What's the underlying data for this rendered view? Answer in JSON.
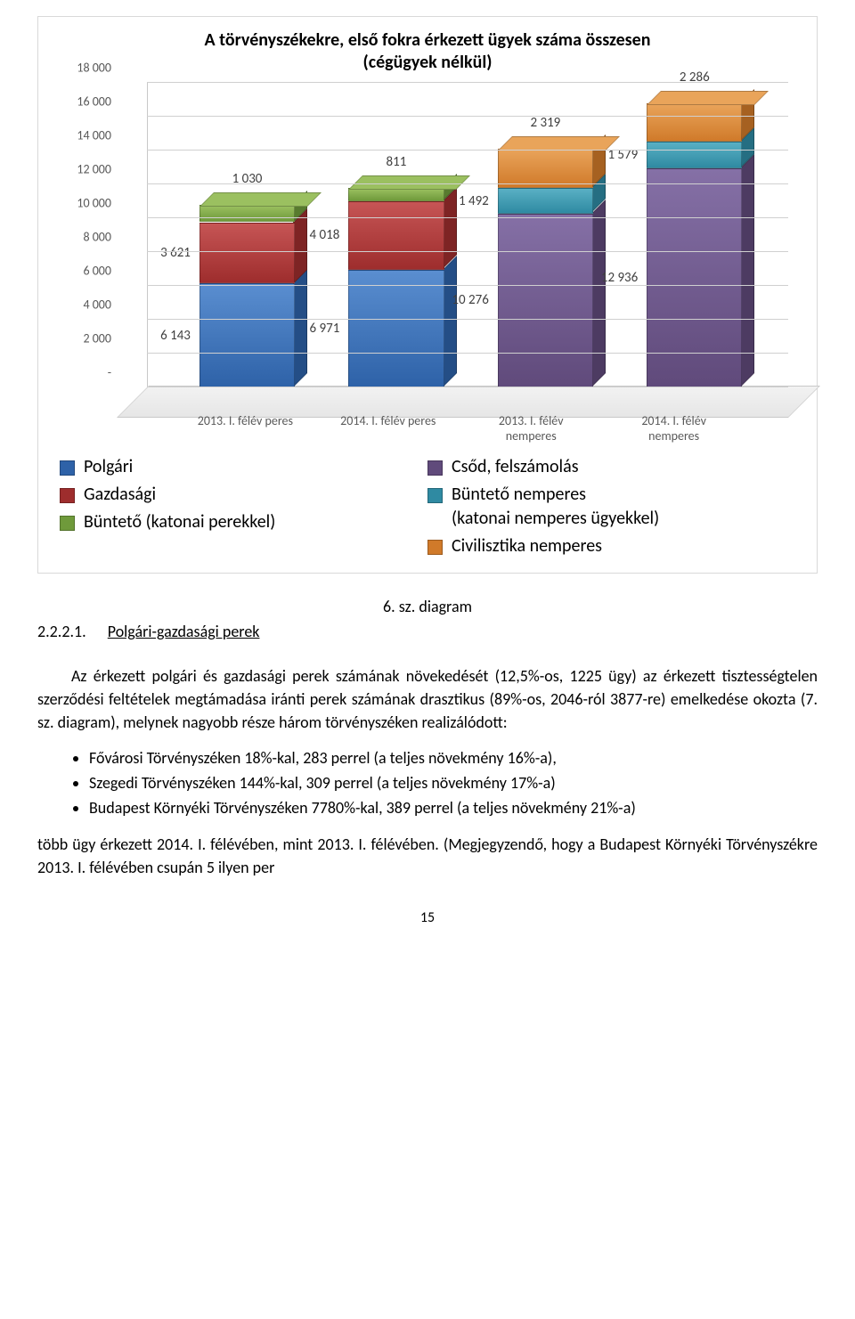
{
  "chart": {
    "type": "stacked-bar-3d",
    "title_line1": "A törvényszékekre, első fokra érkezett ügyek száma összesen",
    "title_line2": "(cégügyek nélkül)",
    "title_fontsize": 20,
    "title_weight": "bold",
    "background_color": "#ffffff",
    "grid_color": "#d0d0d0",
    "border_color": "#d9d9d9",
    "ylim": [
      0,
      18000
    ],
    "ytick_step": 2000,
    "yticks": [
      "-",
      "2 000",
      "4 000",
      "6 000",
      "8 000",
      "10 000",
      "12 000",
      "14 000",
      "16 000",
      "18 000"
    ],
    "categories": [
      "2013. I. félév peres",
      "2014. I. félév peres",
      "2013. I. félév\nnemperes",
      "2014. I. félév\nnemperes"
    ],
    "series": [
      {
        "name": "Polgári",
        "color_front": "#2e62a8",
        "color_side": "#244e86",
        "color_top": "#5a8ed0"
      },
      {
        "name": "Gazdasági",
        "color_front": "#9e2d2d",
        "color_side": "#7e2424",
        "color_top": "#c65555"
      },
      {
        "name": "Büntető (katonai perekkel)",
        "color_front": "#6f9a3b",
        "color_side": "#587b2f",
        "color_top": "#9bc060"
      },
      {
        "name": "Csőd, felszámolás",
        "color_front": "#604a7b",
        "color_side": "#4d3b62",
        "color_top": "#8570a6"
      },
      {
        "name": "Büntető nemperes\n(katonai nemperes ügyekkel)",
        "color_front": "#2f8aa2",
        "color_side": "#256e82",
        "color_top": "#59b0c4"
      },
      {
        "name": "Civilisztika nemperes",
        "color_front": "#d07a2a",
        "color_side": "#a66121",
        "color_top": "#e9a45a"
      }
    ],
    "stacks": [
      {
        "segments": [
          {
            "series": 0,
            "value": 6143,
            "label": "6 143"
          },
          {
            "series": 1,
            "value": 3621,
            "label": "3 621"
          },
          {
            "series": 2,
            "value": 1030,
            "label": "1 030",
            "label_above": true
          }
        ]
      },
      {
        "segments": [
          {
            "series": 0,
            "value": 6971,
            "label": "6 971"
          },
          {
            "series": 1,
            "value": 4018,
            "label": "4 018"
          },
          {
            "series": 2,
            "value": 811,
            "label": "811",
            "label_above": true
          }
        ]
      },
      {
        "segments": [
          {
            "series": 3,
            "value": 10276,
            "label": "10 276"
          },
          {
            "series": 4,
            "value": 1492,
            "label": "1 492"
          },
          {
            "series": 5,
            "value": 2319,
            "label": "2 319",
            "label_above": true
          }
        ]
      },
      {
        "segments": [
          {
            "series": 3,
            "value": 12936,
            "label": "12 936"
          },
          {
            "series": 4,
            "value": 1579,
            "label": "1 579"
          },
          {
            "series": 5,
            "value": 2286,
            "label": "2 286",
            "label_above": true
          }
        ]
      }
    ],
    "label_fontsize": 15,
    "axis_fontsize": 14,
    "axis_color": "#595959"
  },
  "caption": "6. sz. diagram",
  "section": {
    "number": "2.2.2.1.",
    "title": "Polgári-gazdasági perek"
  },
  "para1": "Az érkezett polgári és gazdasági perek számának növekedését (12,5%-os, 1225 ügy) az érkezett tisztességtelen szerződési feltételek megtámadása iránti perek számának drasztikus (89%-os, 2046-ról 3877-re) emelkedése okozta (7. sz. diagram), melynek nagyobb része három törvényszéken realizálódott:",
  "bullets": [
    "Fővárosi Törvényszéken 18%-kal, 283 perrel (a teljes növekmény 16%-a),",
    "Szegedi Törvényszéken 144%-kal, 309 perrel (a teljes növekmény 17%-a)",
    "Budapest Környéki Törvényszéken 7780%-kal, 389 perrel (a teljes növekmény 21%-a)"
  ],
  "para2": "több ügy érkezett 2014. I. félévében, mint 2013. I. félévében. (Megjegyzendő, hogy a Budapest Környéki Törvényszékre 2013. I. félévében csupán 5 ilyen per",
  "page_number": "15",
  "legend_left_indexes": [
    0,
    1,
    2
  ],
  "legend_right_indexes": [
    3,
    4,
    5
  ]
}
